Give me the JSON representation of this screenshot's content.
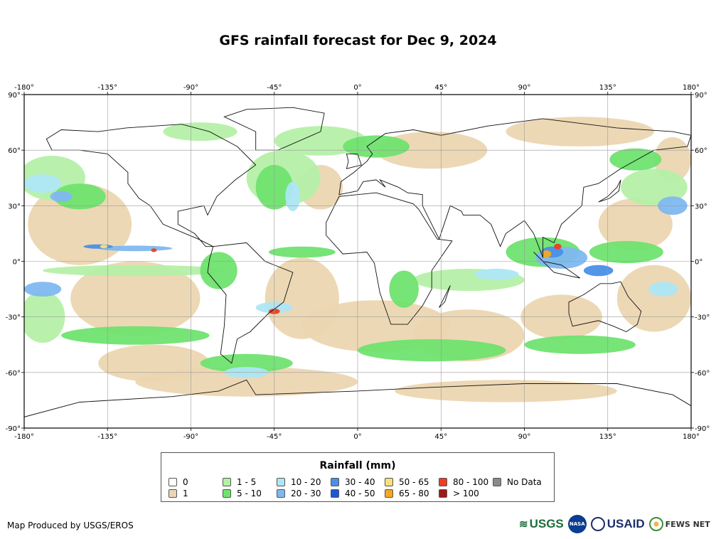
{
  "title": "GFS rainfall forecast for Dec 9, 2024",
  "map": {
    "projection": "equirectangular",
    "lon_range": [
      -180,
      180
    ],
    "lat_range": [
      -90,
      90
    ],
    "lon_ticks": [
      "-180°",
      "-135°",
      "-90°",
      "-45°",
      "0°",
      "45°",
      "90°",
      "135°",
      "180°"
    ],
    "lat_ticks": [
      "90°",
      "60°",
      "30°",
      "0°",
      "-30°",
      "-60°",
      "-90°"
    ]
  },
  "legend": {
    "title": "Rainfall (mm)",
    "items": [
      {
        "label": "0",
        "color": "#ffffff"
      },
      {
        "label": "1",
        "color": "#ecd6b1"
      },
      {
        "label": "1 - 5",
        "color": "#b5f0a8"
      },
      {
        "label": "5 - 10",
        "color": "#6fe36f"
      },
      {
        "label": "10 - 20",
        "color": "#aee6f5"
      },
      {
        "label": "20 - 30",
        "color": "#7fb8f0"
      },
      {
        "label": "30 - 40",
        "color": "#4a8fe6"
      },
      {
        "label": "40 - 50",
        "color": "#1f56d6"
      },
      {
        "label": "50 - 65",
        "color": "#f7e07a"
      },
      {
        "label": "65 - 80",
        "color": "#f5a623"
      },
      {
        "label": "80 - 100",
        "color": "#ee3d1f"
      },
      {
        "label": "> 100",
        "color": "#9b1b1b"
      },
      {
        "label": "No Data",
        "color": "#8a8a8a"
      }
    ]
  },
  "footer": {
    "credit": "Map Produced by USGS/EROS",
    "logos": {
      "usgs": "USGS",
      "nasa": "NASA",
      "usaid": "USAID",
      "fews": "FEWS NET"
    }
  }
}
